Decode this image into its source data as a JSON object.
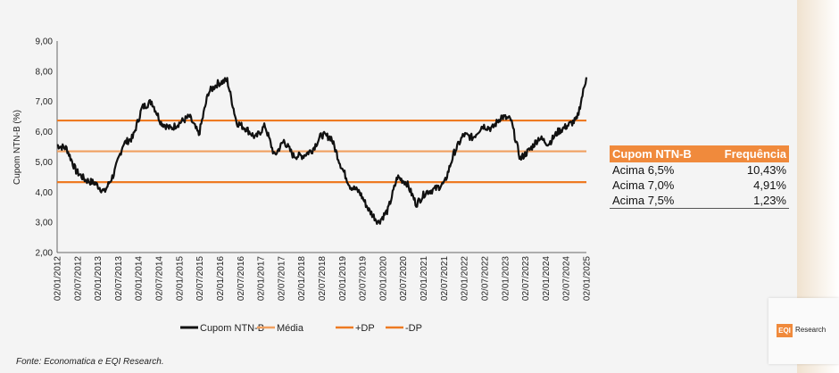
{
  "chart_data": {
    "type": "line",
    "ylabel": "Cupom NTN-B (%)",
    "ylim": [
      2.0,
      9.0
    ],
    "yticks": [
      "2,00",
      "3,00",
      "4,00",
      "5,00",
      "6,00",
      "7,00",
      "8,00",
      "9,00"
    ],
    "xticks": [
      "02/01/2012",
      "02/07/2012",
      "02/01/2013",
      "02/07/2013",
      "02/01/2014",
      "02/07/2014",
      "02/01/2015",
      "02/07/2015",
      "02/01/2016",
      "02/07/2016",
      "02/01/2017",
      "02/07/2017",
      "02/01/2018",
      "02/07/2018",
      "02/01/2019",
      "02/07/2019",
      "02/01/2020",
      "02/07/2020",
      "02/01/2021",
      "02/07/2021",
      "02/01/2022",
      "02/07/2022",
      "02/01/2023",
      "02/07/2023",
      "02/01/2024",
      "02/07/2024",
      "02/01/2025"
    ],
    "grid": false,
    "legend_position": "bottom",
    "series": [
      {
        "name": "Cupom NTN-B",
        "color": "#111111",
        "values": [
          5.55,
          5.45,
          4.7,
          4.4,
          4.3,
          4.0,
          4.6,
          5.6,
          5.8,
          6.8,
          7.0,
          6.3,
          6.1,
          6.3,
          6.5,
          5.9,
          7.3,
          7.6,
          7.7,
          6.3,
          6.1,
          5.8,
          6.2,
          5.2,
          5.7,
          5.2,
          5.2,
          5.4,
          5.9,
          5.8,
          4.9,
          4.2,
          4.0,
          3.4,
          3.0,
          3.4,
          4.5,
          4.3,
          3.6,
          4.0,
          4.1,
          4.3,
          5.3,
          5.9,
          5.8,
          6.2,
          6.1,
          6.5,
          6.4,
          5.1,
          5.4,
          5.8,
          5.6,
          6.0,
          6.2,
          6.4,
          7.8
        ]
      },
      {
        "name": "Média",
        "color": "#f0a060",
        "values": [
          5.35
        ]
      },
      {
        "name": "+DP",
        "color": "#ee7a22",
        "values": [
          6.37
        ]
      },
      {
        "name": "-DP",
        "color": "#ee7a22",
        "values": [
          4.33
        ]
      }
    ]
  },
  "table": {
    "headers": [
      "Cupom NTN-B",
      "Frequência"
    ],
    "rows": [
      [
        "Acima 6,5%",
        "10,43%"
      ],
      [
        "Acima 7,0%",
        "4,91%"
      ],
      [
        "Acima 7,5%",
        "1,23%"
      ]
    ]
  },
  "source": "Fonte: Economatica e EQI Research.",
  "logo": {
    "mark": "EQI",
    "text": "Research"
  }
}
